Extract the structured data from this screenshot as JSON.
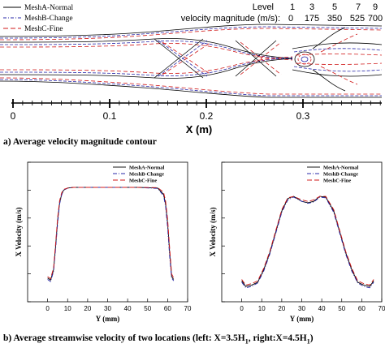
{
  "top": {
    "legend": [
      "MeshA-Normal",
      "MeshB-Change",
      "MeshC-Fine"
    ],
    "level_header": "Level",
    "levels": [
      "1",
      "3",
      "5",
      "7",
      "9"
    ],
    "velocity_header": "velocity magnitude (m/s):",
    "velocities": [
      "0",
      "175",
      "350",
      "525",
      "700"
    ],
    "x_ticks": [
      "0",
      "0.1",
      "0.2",
      "0.3"
    ],
    "x_label": "X (m)",
    "caption": "a) Average velocity magnitude contour"
  },
  "colors": {
    "meshA": "#000000",
    "meshB": "#2a2aaa",
    "meshC": "#d01818"
  },
  "chart_data": [
    {
      "type": "line",
      "xlabel": "Y (mm)",
      "ylabel": "X Velocity (m/s)",
      "xlim": [
        -10,
        70
      ],
      "ylim": [
        -200,
        800
      ],
      "xticks": [
        0,
        10,
        20,
        30,
        40,
        50,
        60,
        70
      ],
      "yticks": [
        -200,
        0,
        200,
        400,
        600,
        800
      ],
      "legend_position": "top-right",
      "series": [
        {
          "name": "MeshA-Normal",
          "x": [
            0,
            1.5,
            3,
            4,
            5,
            6,
            7,
            8,
            10,
            13,
            20,
            32,
            45,
            55,
            58,
            59,
            60,
            61,
            62,
            63
          ],
          "y": [
            -30,
            -45,
            30,
            200,
            380,
            510,
            570,
            600,
            615,
            620,
            620,
            620,
            620,
            615,
            570,
            500,
            360,
            160,
            -20,
            -40
          ]
        },
        {
          "name": "MeshB-Change",
          "x": [
            0,
            1.5,
            3,
            4,
            5,
            6,
            7,
            8,
            10,
            13,
            20,
            32,
            45,
            55,
            58,
            59,
            60,
            61,
            62,
            63
          ],
          "y": [
            -40,
            -55,
            20,
            180,
            360,
            500,
            565,
            600,
            615,
            620,
            620,
            620,
            620,
            612,
            560,
            480,
            330,
            130,
            -30,
            -50
          ]
        },
        {
          "name": "MeshC-Fine",
          "x": [
            0,
            1.5,
            3,
            4,
            5,
            6,
            7,
            8,
            10,
            13,
            20,
            32,
            45,
            55,
            58,
            59,
            60,
            61,
            62,
            63
          ],
          "y": [
            -20,
            -35,
            45,
            220,
            400,
            525,
            580,
            605,
            615,
            620,
            620,
            620,
            620,
            618,
            585,
            520,
            390,
            190,
            0,
            -30
          ]
        }
      ]
    },
    {
      "type": "line",
      "xlabel": "Y (mm)",
      "ylabel": "X Velocity (m/s)",
      "xlim": [
        -10,
        70
      ],
      "ylim": [
        -200,
        800
      ],
      "xticks": [
        0,
        10,
        20,
        30,
        40,
        50,
        60,
        70
      ],
      "yticks": [
        -200,
        0,
        200,
        400,
        600,
        800
      ],
      "legend_position": "top-right",
      "series": [
        {
          "name": "MeshA-Normal",
          "x": [
            0,
            2,
            5,
            8,
            11,
            14,
            17,
            20,
            23,
            26,
            30,
            33,
            36,
            39,
            42,
            46,
            49,
            52,
            55,
            58,
            61,
            64,
            66
          ],
          "y": [
            -50,
            -90,
            -80,
            -60,
            30,
            150,
            300,
            450,
            540,
            555,
            520,
            510,
            520,
            555,
            550,
            450,
            300,
            150,
            30,
            -60,
            -80,
            -90,
            -50
          ]
        },
        {
          "name": "MeshB-Change",
          "x": [
            0,
            2,
            5,
            8,
            11,
            14,
            17,
            20,
            23,
            26,
            30,
            33,
            36,
            39,
            42,
            46,
            49,
            52,
            55,
            58,
            61,
            64,
            66
          ],
          "y": [
            -60,
            -100,
            -90,
            -65,
            20,
            140,
            290,
            440,
            530,
            550,
            520,
            505,
            515,
            550,
            545,
            440,
            290,
            140,
            20,
            -65,
            -90,
            -100,
            -60
          ]
        },
        {
          "name": "MeshC-Fine",
          "x": [
            0,
            2,
            5,
            8,
            11,
            14,
            17,
            20,
            23,
            26,
            30,
            33,
            36,
            39,
            42,
            46,
            49,
            52,
            55,
            58,
            61,
            64,
            66
          ],
          "y": [
            -40,
            -80,
            -70,
            -50,
            40,
            160,
            310,
            460,
            545,
            555,
            530,
            520,
            530,
            555,
            555,
            460,
            310,
            160,
            40,
            -50,
            -70,
            -80,
            -40
          ]
        }
      ]
    }
  ],
  "bottom_caption": {
    "prefix": "b) Average streamwise velocity of two locations (left: X=3.5H",
    "sub1": "1",
    "middle": ", right:X=4.5H",
    "sub2": "1",
    "suffix": ")"
  }
}
